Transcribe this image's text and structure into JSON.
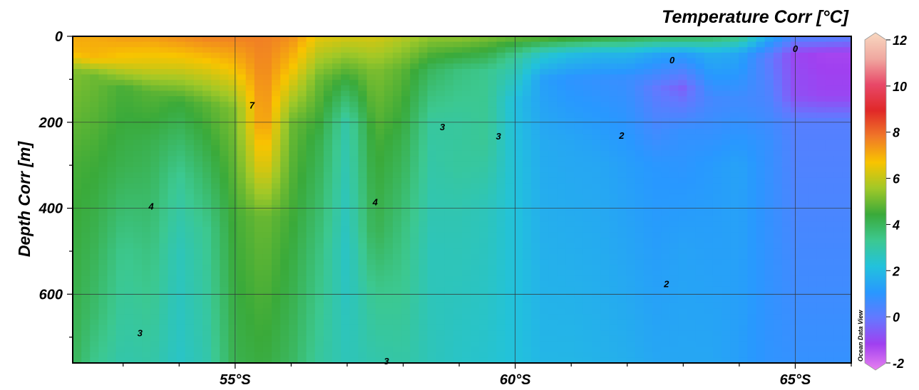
{
  "chart_data": {
    "type": "heatmap",
    "title": "Temperature Corr [°C]",
    "xlabel": "",
    "ylabel": "Depth Corr [m]",
    "x_ticks": [
      "55°S",
      "60°S",
      "65°S"
    ],
    "x_tick_values": [
      55,
      60,
      65
    ],
    "y_ticks": [
      "0",
      "200",
      "400",
      "600"
    ],
    "y_tick_values": [
      0,
      200,
      400,
      600
    ],
    "xlim": [
      52.1,
      66.0
    ],
    "ylim": [
      0,
      760
    ],
    "y_reversed": true,
    "grid": true,
    "colorbar": {
      "ticks": [
        "12",
        "10",
        "8",
        "6",
        "4",
        "2",
        "0",
        "-2"
      ],
      "values": [
        12,
        10,
        8,
        6,
        4,
        2,
        0,
        -2
      ],
      "range": [
        -2,
        12
      ],
      "colors": [
        "#e880f0",
        "#a040f0",
        "#6478ff",
        "#2898ff",
        "#22c2dc",
        "#3cc890",
        "#3aaa3a",
        "#a0c828",
        "#f8c400",
        "#f07828",
        "#e02828",
        "#e84868",
        "#f0a8a0",
        "#f8d8c0"
      ]
    },
    "contour_labels": [
      {
        "text": "0",
        "lat": 62.8,
        "depth": 55
      },
      {
        "text": "0",
        "lat": 65.0,
        "depth": 28
      },
      {
        "text": "2",
        "lat": 61.9,
        "depth": 230
      },
      {
        "text": "2",
        "lat": 62.7,
        "depth": 575
      },
      {
        "text": "3",
        "lat": 58.7,
        "depth": 210
      },
      {
        "text": "3",
        "lat": 59.7,
        "depth": 232
      },
      {
        "text": "3",
        "lat": 53.3,
        "depth": 690
      },
      {
        "text": "3",
        "lat": 57.7,
        "depth": 755
      },
      {
        "text": "4",
        "lat": 53.5,
        "depth": 395
      },
      {
        "text": "4",
        "lat": 57.5,
        "depth": 385
      },
      {
        "text": "7",
        "lat": 55.3,
        "depth": 160
      }
    ],
    "columns": [
      {
        "lat": 52.1,
        "profile": [
          [
            0,
            7.0
          ],
          [
            40,
            6.8
          ],
          [
            80,
            5.2
          ],
          [
            300,
            4.6
          ],
          [
            760,
            4.1
          ]
        ]
      },
      {
        "lat": 52.5,
        "profile": [
          [
            0,
            7.0
          ],
          [
            50,
            6.8
          ],
          [
            90,
            5.0
          ],
          [
            300,
            4.5
          ],
          [
            650,
            3.8
          ],
          [
            760,
            3.4
          ]
        ]
      },
      {
        "lat": 53.0,
        "profile": [
          [
            0,
            7.2
          ],
          [
            60,
            6.4
          ],
          [
            120,
            4.6
          ],
          [
            300,
            4.2
          ],
          [
            500,
            3.4
          ],
          [
            760,
            3.0
          ]
        ]
      },
      {
        "lat": 53.5,
        "profile": [
          [
            0,
            7.2
          ],
          [
            70,
            6.2
          ],
          [
            130,
            4.8
          ],
          [
            250,
            4.2
          ],
          [
            500,
            3.6
          ],
          [
            760,
            3.1
          ]
        ]
      },
      {
        "lat": 54.0,
        "profile": [
          [
            0,
            7.4
          ],
          [
            70,
            6.2
          ],
          [
            150,
            4.5
          ],
          [
            330,
            3.3
          ],
          [
            500,
            2.8
          ],
          [
            760,
            2.6
          ]
        ]
      },
      {
        "lat": 54.5,
        "profile": [
          [
            0,
            7.6
          ],
          [
            70,
            6.4
          ],
          [
            160,
            4.8
          ],
          [
            300,
            4.1
          ],
          [
            450,
            3.4
          ],
          [
            760,
            3.0
          ]
        ]
      },
      {
        "lat": 55.0,
        "profile": [
          [
            0,
            7.6
          ],
          [
            80,
            6.6
          ],
          [
            170,
            5.2
          ],
          [
            400,
            4.6
          ],
          [
            760,
            4.2
          ]
        ]
      },
      {
        "lat": 55.5,
        "profile": [
          [
            0,
            7.6
          ],
          [
            200,
            7.4
          ],
          [
            310,
            6.4
          ],
          [
            420,
            5.0
          ],
          [
            760,
            4.4
          ]
        ]
      },
      {
        "lat": 56.0,
        "profile": [
          [
            0,
            7.4
          ],
          [
            80,
            6.6
          ],
          [
            200,
            5.0
          ],
          [
            500,
            4.4
          ],
          [
            760,
            4.0
          ]
        ]
      },
      {
        "lat": 56.5,
        "profile": [
          [
            0,
            6.4
          ],
          [
            100,
            5.0
          ],
          [
            250,
            4.2
          ],
          [
            500,
            3.6
          ],
          [
            760,
            3.2
          ]
        ]
      },
      {
        "lat": 57.0,
        "profile": [
          [
            0,
            6.2
          ],
          [
            100,
            4.4
          ],
          [
            200,
            3.0
          ],
          [
            500,
            2.6
          ],
          [
            760,
            2.8
          ]
        ]
      },
      {
        "lat": 57.5,
        "profile": [
          [
            0,
            6.2
          ],
          [
            80,
            5.2
          ],
          [
            250,
            4.6
          ],
          [
            450,
            4.2
          ],
          [
            600,
            3.4
          ],
          [
            760,
            3.0
          ]
        ]
      },
      {
        "lat": 58.0,
        "profile": [
          [
            0,
            5.8
          ],
          [
            80,
            4.8
          ],
          [
            250,
            4.2
          ],
          [
            450,
            3.6
          ],
          [
            760,
            3.1
          ]
        ]
      },
      {
        "lat": 58.5,
        "profile": [
          [
            0,
            5.4
          ],
          [
            80,
            4.0
          ],
          [
            200,
            3.2
          ],
          [
            500,
            2.8
          ],
          [
            760,
            2.8
          ]
        ]
      },
      {
        "lat": 59.0,
        "profile": [
          [
            0,
            5.4
          ],
          [
            80,
            3.6
          ],
          [
            200,
            3.2
          ],
          [
            300,
            3.2
          ],
          [
            420,
            2.9
          ],
          [
            760,
            2.6
          ]
        ]
      },
      {
        "lat": 59.5,
        "profile": [
          [
            0,
            5.2
          ],
          [
            80,
            3.4
          ],
          [
            250,
            3.3
          ],
          [
            400,
            2.8
          ],
          [
            760,
            2.5
          ]
        ]
      },
      {
        "lat": 60.0,
        "profile": [
          [
            0,
            5.0
          ],
          [
            50,
            3.2
          ],
          [
            150,
            2.2
          ],
          [
            300,
            2.3
          ],
          [
            760,
            2.3
          ]
        ]
      },
      {
        "lat": 60.5,
        "profile": [
          [
            0,
            5.0
          ],
          [
            40,
            2.6
          ],
          [
            100,
            1.4
          ],
          [
            250,
            1.7
          ],
          [
            760,
            2.0
          ]
        ]
      },
      {
        "lat": 61.0,
        "profile": [
          [
            0,
            4.8
          ],
          [
            40,
            2.2
          ],
          [
            100,
            1.1
          ],
          [
            250,
            1.6
          ],
          [
            760,
            2.0
          ]
        ]
      },
      {
        "lat": 61.5,
        "profile": [
          [
            0,
            4.6
          ],
          [
            40,
            2.0
          ],
          [
            100,
            1.0
          ],
          [
            300,
            1.6
          ],
          [
            760,
            1.9
          ]
        ]
      },
      {
        "lat": 62.0,
        "profile": [
          [
            0,
            4.4
          ],
          [
            40,
            2.0
          ],
          [
            100,
            0.9
          ],
          [
            300,
            1.4
          ],
          [
            760,
            1.8
          ]
        ]
      },
      {
        "lat": 62.5,
        "profile": [
          [
            0,
            4.2
          ],
          [
            40,
            1.6
          ],
          [
            120,
            0.2
          ],
          [
            300,
            1.2
          ],
          [
            760,
            1.6
          ]
        ]
      },
      {
        "lat": 63.0,
        "profile": [
          [
            0,
            4.2
          ],
          [
            40,
            1.4
          ],
          [
            120,
            -0.3
          ],
          [
            220,
            1.0
          ],
          [
            500,
            1.5
          ],
          [
            760,
            1.6
          ]
        ]
      },
      {
        "lat": 63.5,
        "profile": [
          [
            0,
            4.0
          ],
          [
            40,
            1.8
          ],
          [
            150,
            0.7
          ],
          [
            300,
            1.3
          ],
          [
            760,
            1.6
          ]
        ]
      },
      {
        "lat": 64.0,
        "profile": [
          [
            0,
            3.6
          ],
          [
            40,
            1.6
          ],
          [
            150,
            0.8
          ],
          [
            300,
            1.5
          ],
          [
            760,
            1.4
          ]
        ]
      },
      {
        "lat": 64.5,
        "profile": [
          [
            0,
            1.8
          ],
          [
            50,
            0.3
          ],
          [
            140,
            0.6
          ],
          [
            250,
            1.0
          ],
          [
            760,
            1.1
          ]
        ]
      },
      {
        "lat": 65.0,
        "profile": [
          [
            0,
            0.6
          ],
          [
            40,
            -0.8
          ],
          [
            140,
            -0.6
          ],
          [
            200,
            0.4
          ],
          [
            760,
            1.0
          ]
        ]
      },
      {
        "lat": 65.5,
        "profile": [
          [
            0,
            0.6
          ],
          [
            40,
            -1.0
          ],
          [
            140,
            -0.8
          ],
          [
            200,
            0.4
          ],
          [
            760,
            1.0
          ]
        ]
      },
      {
        "lat": 66.0,
        "profile": [
          [
            0,
            0.4
          ],
          [
            40,
            -1.0
          ],
          [
            140,
            -0.8
          ],
          [
            200,
            0.4
          ],
          [
            760,
            1.0
          ]
        ]
      }
    ],
    "watermark": "Ocean Data View"
  }
}
